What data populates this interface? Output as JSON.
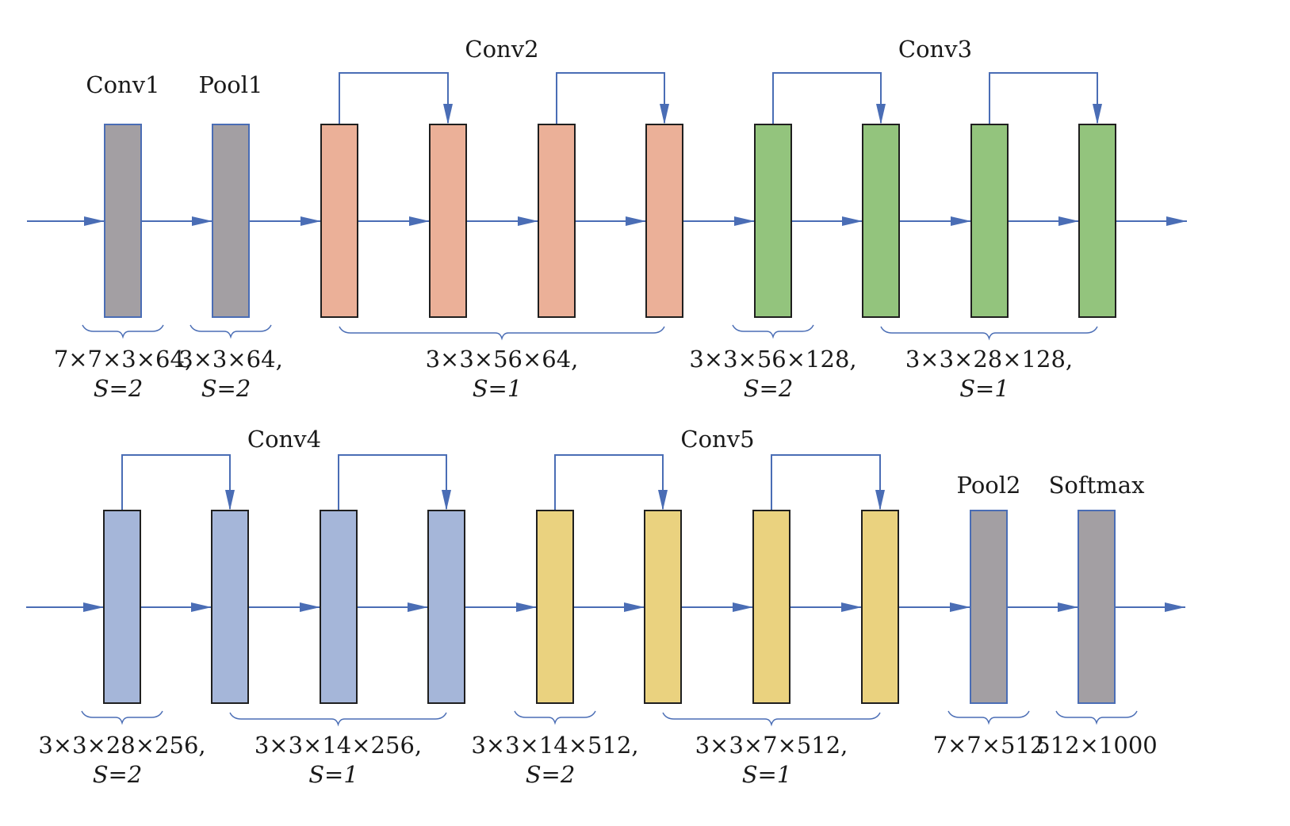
{
  "colors": {
    "arrow": "#4a6db5",
    "gray_fill": "#a39fa3",
    "salmon_fill": "#ebb098",
    "green_fill": "#93c47d",
    "blue_fill": "#a5b6d9",
    "yellow_fill": "#ead27f",
    "dark_border": "#1f1f1f"
  },
  "rows": [
    {
      "id": "row1",
      "stages": [
        {
          "label": "Conv1",
          "boxes": [
            0
          ]
        },
        {
          "label": "Pool1",
          "boxes": [
            1
          ]
        },
        {
          "label": "Conv2",
          "boxes": [
            2,
            3,
            4,
            5
          ]
        },
        {
          "label": "Conv3",
          "boxes": [
            6,
            7,
            8,
            9
          ]
        }
      ],
      "boxes": [
        {
          "fill": "gray_fill",
          "border": "arrow"
        },
        {
          "fill": "gray_fill",
          "border": "arrow"
        },
        {
          "fill": "salmon_fill",
          "border": "dark_border"
        },
        {
          "fill": "salmon_fill",
          "border": "dark_border"
        },
        {
          "fill": "salmon_fill",
          "border": "dark_border"
        },
        {
          "fill": "salmon_fill",
          "border": "dark_border"
        },
        {
          "fill": "green_fill",
          "border": "dark_border"
        },
        {
          "fill": "green_fill",
          "border": "dark_border"
        },
        {
          "fill": "green_fill",
          "border": "dark_border"
        },
        {
          "fill": "green_fill",
          "border": "dark_border"
        }
      ],
      "skips": [
        [
          2,
          3
        ],
        [
          4,
          5
        ],
        [
          6,
          7
        ],
        [
          8,
          9
        ]
      ],
      "groups": [
        {
          "from": 0,
          "to": 0,
          "line1": "7×7×3×64,",
          "line2": "S=2"
        },
        {
          "from": 1,
          "to": 1,
          "line1": "3×3×64,",
          "line2": "S=2"
        },
        {
          "from": 2,
          "to": 5,
          "line1": "3×3×56×64,",
          "line2": "S=1"
        },
        {
          "from": 6,
          "to": 6,
          "line1": "3×3×56×128,",
          "line2": "S=2"
        },
        {
          "from": 7,
          "to": 9,
          "line1": "3×3×28×128,",
          "line2": "S=1"
        }
      ]
    },
    {
      "id": "row2",
      "stages": [
        {
          "label": "Conv4",
          "boxes": [
            0,
            1,
            2,
            3
          ]
        },
        {
          "label": "Conv5",
          "boxes": [
            4,
            5,
            6,
            7
          ]
        },
        {
          "label": "Pool2",
          "boxes": [
            8
          ]
        },
        {
          "label": "Softmax",
          "boxes": [
            9
          ]
        }
      ],
      "boxes": [
        {
          "fill": "blue_fill",
          "border": "dark_border"
        },
        {
          "fill": "blue_fill",
          "border": "dark_border"
        },
        {
          "fill": "blue_fill",
          "border": "dark_border"
        },
        {
          "fill": "blue_fill",
          "border": "dark_border"
        },
        {
          "fill": "yellow_fill",
          "border": "dark_border"
        },
        {
          "fill": "yellow_fill",
          "border": "dark_border"
        },
        {
          "fill": "yellow_fill",
          "border": "dark_border"
        },
        {
          "fill": "yellow_fill",
          "border": "dark_border"
        },
        {
          "fill": "gray_fill",
          "border": "arrow"
        },
        {
          "fill": "gray_fill",
          "border": "arrow"
        }
      ],
      "skips": [
        [
          0,
          1
        ],
        [
          2,
          3
        ],
        [
          4,
          5
        ],
        [
          6,
          7
        ]
      ],
      "groups": [
        {
          "from": 0,
          "to": 0,
          "line1": "3×3×28×256,",
          "line2": "S=2"
        },
        {
          "from": 1,
          "to": 3,
          "line1": "3×3×14×256,",
          "line2": "S=1"
        },
        {
          "from": 4,
          "to": 4,
          "line1": "3×3×14×512,",
          "line2": "S=2"
        },
        {
          "from": 5,
          "to": 7,
          "line1": "3×3×7×512,",
          "line2": "S=1"
        },
        {
          "from": 8,
          "to": 8,
          "line1": "7×7×512",
          "line2": ""
        },
        {
          "from": 9,
          "to": 9,
          "line1": "512×1000",
          "line2": ""
        }
      ]
    }
  ]
}
